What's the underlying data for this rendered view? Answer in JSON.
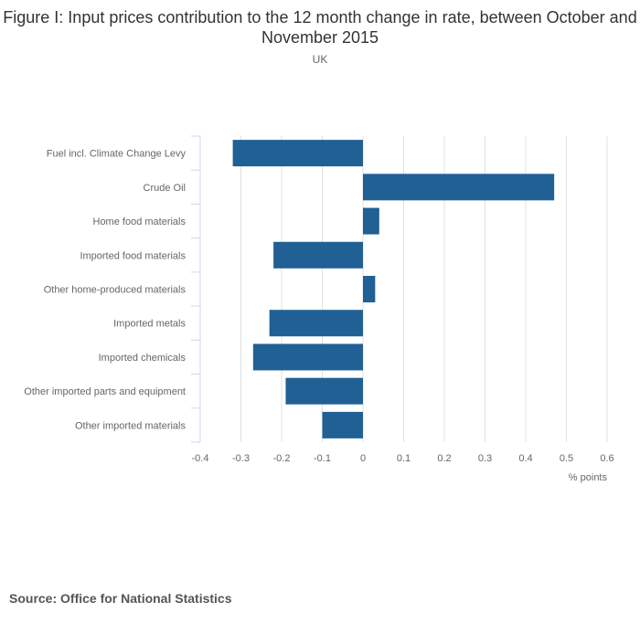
{
  "chart_data": {
    "type": "bar",
    "orientation": "horizontal",
    "title": "Figure I: Input prices contribution to the 12 month change in rate, between October and November 2015",
    "subtitle": "UK",
    "xlabel": "% points",
    "ylabel": "",
    "xlim": [
      -0.4,
      0.6
    ],
    "xticks": [
      "-0.4",
      "-0.3",
      "-0.2",
      "-0.1",
      "0",
      "0.1",
      "0.2",
      "0.3",
      "0.4",
      "0.5",
      "0.6"
    ],
    "xtick_values": [
      -0.4,
      -0.3,
      -0.2,
      -0.1,
      0,
      0.1,
      0.2,
      0.3,
      0.4,
      0.5,
      0.6
    ],
    "grid": true,
    "categories": [
      "Fuel incl. Climate Change Levy",
      "Crude Oil",
      "Home food materials",
      "Imported food materials",
      "Other home-produced materials",
      "Imported metals",
      "Imported chemicals",
      "Other imported parts and equipment",
      "Other imported materials"
    ],
    "values": [
      -0.32,
      0.47,
      0.04,
      -0.22,
      0.03,
      -0.23,
      -0.27,
      -0.19,
      -0.1
    ],
    "bar_color": "#206095"
  },
  "source": "Source: Office for National Statistics"
}
